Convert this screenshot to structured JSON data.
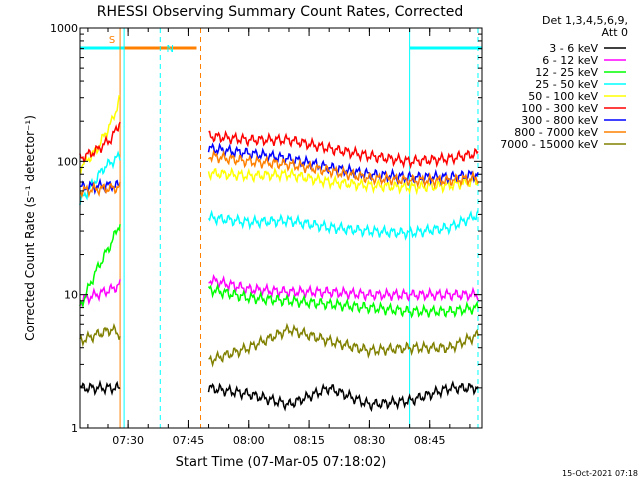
{
  "chart_data": {
    "type": "line",
    "title": "RHESSI Observing Summary Count Rates, Corrected",
    "xlabel": "Start Time (07-Mar-05 07:18:02)",
    "ylabel": "Corrected Count Rate (s⁻¹ detector⁻¹)",
    "x_start": "07:18:02",
    "xlim": [
      "07:18:02",
      "08:58:00"
    ],
    "ylim": [
      1,
      1000
    ],
    "y_scale": "log",
    "x_ticks": [
      "07:30",
      "07:45",
      "08:00",
      "08:15",
      "08:30",
      "08:45"
    ],
    "y_ticks": [
      "1",
      "10",
      "100",
      "1000"
    ],
    "legend_header": [
      "Det 1,3,4,5,6,9,",
      "Att 0"
    ],
    "legend_position": "top-right outside",
    "footer": "15-Oct-2021 07:18",
    "flags": [
      {
        "label": "S",
        "color": "#ff8000",
        "start": "07:28:00",
        "end": "07:47:00"
      },
      {
        "label": "N",
        "color": "#00ffff",
        "segments": [
          [
            "07:18:02",
            "07:29:00"
          ],
          [
            "08:40:00",
            "08:58:00"
          ]
        ]
      }
    ],
    "vertical_markers": [
      {
        "time": "07:28:00",
        "color": "#ff8000",
        "style": "solid"
      },
      {
        "time": "07:29:00",
        "color": "#00ffff",
        "style": "solid"
      },
      {
        "time": "07:38:00",
        "color": "#00ffff",
        "style": "dashed"
      },
      {
        "time": "07:48:00",
        "color": "#ff8000",
        "style": "dashed"
      },
      {
        "time": "08:40:00",
        "color": "#00ffff",
        "style": "solid"
      },
      {
        "time": "08:57:00",
        "color": "#00ffff",
        "style": "dashed"
      }
    ],
    "series": [
      {
        "name": "3 - 6 keV",
        "color": "#000000",
        "x": [
          "07:18",
          "07:22",
          "07:26",
          "07:28",
          "07:50",
          "08:00",
          "08:10",
          "08:20",
          "08:30",
          "08:40",
          "08:50",
          "08:57"
        ],
        "values": [
          2,
          2,
          2,
          2,
          2,
          1.8,
          1.5,
          2,
          1.5,
          1.6,
          2,
          2
        ]
      },
      {
        "name": "6 - 12 keV",
        "color": "#ff00ff",
        "x": [
          "07:18",
          "07:22",
          "07:26",
          "07:28",
          "07:50",
          "08:00",
          "08:10",
          "08:20",
          "08:30",
          "08:40",
          "08:50",
          "08:57"
        ],
        "values": [
          9,
          10,
          11,
          12,
          13,
          11,
          10.5,
          10.5,
          10,
          10,
          10,
          10
        ]
      },
      {
        "name": "12 - 25 keV",
        "color": "#00ff00",
        "x": [
          "07:18",
          "07:22",
          "07:26",
          "07:28",
          "07:50",
          "08:00",
          "08:10",
          "08:20",
          "08:30",
          "08:40",
          "08:50",
          "08:57"
        ],
        "values": [
          8,
          15,
          25,
          35,
          11,
          9.5,
          9,
          8.5,
          8,
          7.5,
          7.5,
          8
        ]
      },
      {
        "name": "25 - 50 keV",
        "color": "#00ffff",
        "x": [
          "07:18",
          "07:20",
          "07:24",
          "07:28",
          "07:50",
          "08:00",
          "08:10",
          "08:20",
          "08:30",
          "08:40",
          "08:50",
          "08:57"
        ],
        "values": [
          50,
          60,
          90,
          110,
          38,
          35,
          36,
          32,
          30,
          29,
          32,
          40
        ]
      },
      {
        "name": "50 - 100 keV",
        "color": "#ffff00",
        "x": [
          "07:18",
          "07:22",
          "07:26",
          "07:28",
          "07:50",
          "08:00",
          "08:10",
          "08:20",
          "08:30",
          "08:40",
          "08:50",
          "08:57"
        ],
        "values": [
          90,
          120,
          200,
          300,
          82,
          78,
          80,
          70,
          66,
          64,
          66,
          72
        ]
      },
      {
        "name": "100 - 300 keV",
        "color": "#ff0000",
        "x": [
          "07:18",
          "07:22",
          "07:26",
          "07:28",
          "07:50",
          "08:00",
          "08:10",
          "08:20",
          "08:30",
          "08:40",
          "08:50",
          "08:57"
        ],
        "values": [
          105,
          120,
          150,
          200,
          155,
          145,
          145,
          125,
          110,
          100,
          105,
          115
        ]
      },
      {
        "name": "300 - 800 keV",
        "color": "#0000ff",
        "x": [
          "07:18",
          "07:22",
          "07:26",
          "07:28",
          "07:50",
          "08:00",
          "08:10",
          "08:20",
          "08:30",
          "08:40",
          "08:50",
          "08:57"
        ],
        "values": [
          64,
          65,
          66,
          66,
          125,
          115,
          105,
          90,
          80,
          76,
          76,
          80
        ]
      },
      {
        "name": "800 - 7000 keV",
        "color": "#ff8000",
        "x": [
          "07:18",
          "07:22",
          "07:26",
          "07:28",
          "07:50",
          "08:00",
          "08:10",
          "08:20",
          "08:30",
          "08:40",
          "08:50",
          "08:57"
        ],
        "values": [
          60,
          62,
          63,
          64,
          110,
          100,
          95,
          85,
          75,
          72,
          72,
          75
        ]
      },
      {
        "name": "7000 - 15000 keV",
        "color": "#808000",
        "x": [
          "07:18",
          "07:22",
          "07:26",
          "07:28",
          "07:50",
          "08:00",
          "08:10",
          "08:20",
          "08:30",
          "08:40",
          "08:50",
          "08:57"
        ],
        "values": [
          4.5,
          5,
          5.5,
          5,
          3.2,
          4,
          5.5,
          4.5,
          3.8,
          4,
          4,
          5
        ]
      }
    ]
  }
}
